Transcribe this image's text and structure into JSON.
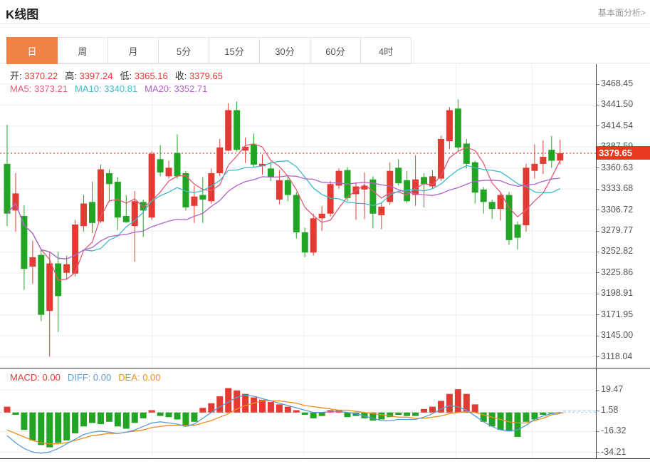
{
  "header": {
    "title": "K线图",
    "link": "基本面分析>"
  },
  "tabs": {
    "items": [
      {
        "label": "日",
        "active": true
      },
      {
        "label": "周",
        "active": false
      },
      {
        "label": "月",
        "active": false
      },
      {
        "label": "5分",
        "active": false
      },
      {
        "label": "15分",
        "active": false
      },
      {
        "label": "30分",
        "active": false
      },
      {
        "label": "60分",
        "active": false
      },
      {
        "label": "4时",
        "active": false
      }
    ]
  },
  "legend": {
    "ohlc": [
      {
        "label": "开:",
        "value": "3370.22"
      },
      {
        "label": "高:",
        "value": "3397.24"
      },
      {
        "label": "低:",
        "value": "3365.16"
      },
      {
        "label": "收:",
        "value": "3379.65"
      }
    ],
    "label_color": "#333333",
    "value_color": "#e23b33",
    "ma": [
      {
        "label": "MA5:",
        "value": "3373.21",
        "color": "#e45b78"
      },
      {
        "label": "MA10:",
        "value": "3340.81",
        "color": "#3fb9c9"
      },
      {
        "label": "MA20:",
        "value": "3352.71",
        "color": "#b163c8"
      }
    ]
  },
  "macd_legend": [
    {
      "label": "MACD:",
      "value": "0.00",
      "color": "#e23b33"
    },
    {
      "label": "DIFF:",
      "value": "0.00",
      "color": "#5b9bd5"
    },
    {
      "label": "DEA:",
      "value": "0.00",
      "color": "#ef8e1a"
    }
  ],
  "price_tag": {
    "value": "3379.65",
    "color": "#e8391f"
  },
  "chart_data": [
    {
      "type": "candlestick",
      "title": "K线图 (日)",
      "y_axis": {
        "labels": [
          "3468.45",
          "3441.50",
          "3414.54",
          "3387.59",
          "3360.63",
          "3333.68",
          "3306.72",
          "3279.77",
          "3252.82",
          "3225.86",
          "3198.91",
          "3171.95",
          "3145.00",
          "3118.04"
        ],
        "values": [
          3468.45,
          3441.5,
          3414.54,
          3387.59,
          3360.63,
          3333.68,
          3306.72,
          3279.77,
          3252.82,
          3225.86,
          3198.91,
          3171.95,
          3145.0,
          3118.04
        ]
      },
      "current_price": 3379.65,
      "current_price_line_color": "#f5564a",
      "up_color": "#e23b33",
      "down_color": "#22a424",
      "grid": true,
      "ohlc_display": {
        "open": 3370.22,
        "high": 3397.24,
        "low": 3365.16,
        "close": 3379.65
      },
      "ma_lines": [
        {
          "name": "MA5",
          "period": 5,
          "color": "#e45b78",
          "current": 3373.21
        },
        {
          "name": "MA10",
          "period": 10,
          "color": "#3fb9c9",
          "current": 3340.81
        },
        {
          "name": "MA20",
          "period": 20,
          "color": "#b163c8",
          "current": 3352.71
        }
      ],
      "candles": [
        [
          3366,
          3416,
          3286,
          3302
        ],
        [
          3306,
          3354,
          3279,
          3328
        ],
        [
          3299,
          3313,
          3204,
          3231
        ],
        [
          3234,
          3267,
          3212,
          3246
        ],
        [
          3249,
          3256,
          3164,
          3172
        ],
        [
          3177,
          3253,
          3118,
          3238
        ],
        [
          3238,
          3253,
          3150,
          3196
        ],
        [
          3226,
          3248,
          3217,
          3237
        ],
        [
          3225,
          3294,
          3221,
          3288
        ],
        [
          3286,
          3326,
          3279,
          3315
        ],
        [
          3317,
          3343,
          3277,
          3290
        ],
        [
          3292,
          3365,
          3290,
          3359
        ],
        [
          3354,
          3359,
          3317,
          3340
        ],
        [
          3343,
          3349,
          3281,
          3297
        ],
        [
          3299,
          3326,
          3290,
          3291
        ],
        [
          3286,
          3331,
          3240,
          3318
        ],
        [
          3317,
          3320,
          3272,
          3306
        ],
        [
          3297,
          3382,
          3294,
          3379
        ],
        [
          3372,
          3390,
          3350,
          3355
        ],
        [
          3350,
          3370,
          3347,
          3361
        ],
        [
          3380,
          3404,
          3347,
          3350
        ],
        [
          3354,
          3357,
          3306,
          3310
        ],
        [
          3312,
          3338,
          3290,
          3324
        ],
        [
          3326,
          3349,
          3290,
          3320
        ],
        [
          3318,
          3360,
          3315,
          3354
        ],
        [
          3354,
          3398,
          3350,
          3387
        ],
        [
          3383,
          3444,
          3382,
          3435
        ],
        [
          3435,
          3446,
          3382,
          3384
        ],
        [
          3383,
          3400,
          3367,
          3388
        ],
        [
          3391,
          3405,
          3362,
          3365
        ],
        [
          3363,
          3378,
          3352,
          3366
        ],
        [
          3360,
          3369,
          3344,
          3349
        ],
        [
          3320,
          3358,
          3314,
          3345
        ],
        [
          3345,
          3350,
          3318,
          3326
        ],
        [
          3326,
          3330,
          3270,
          3278
        ],
        [
          3278,
          3284,
          3246,
          3252
        ],
        [
          3252,
          3302,
          3248,
          3296
        ],
        [
          3296,
          3312,
          3280,
          3302
        ],
        [
          3302,
          3344,
          3298,
          3340
        ],
        [
          3338,
          3360,
          3334,
          3357
        ],
        [
          3358,
          3362,
          3318,
          3322
        ],
        [
          3327,
          3342,
          3294,
          3337
        ],
        [
          3333,
          3355,
          3295,
          3338
        ],
        [
          3346,
          3350,
          3283,
          3302
        ],
        [
          3300,
          3315,
          3282,
          3311
        ],
        [
          3317,
          3368,
          3313,
          3357
        ],
        [
          3361,
          3372,
          3338,
          3341
        ],
        [
          3345,
          3357,
          3316,
          3318
        ],
        [
          3326,
          3377,
          3312,
          3346
        ],
        [
          3349,
          3354,
          3310,
          3340
        ],
        [
          3337,
          3358,
          3334,
          3350
        ],
        [
          3347,
          3402,
          3344,
          3398
        ],
        [
          3395,
          3439,
          3385,
          3435
        ],
        [
          3437,
          3449,
          3382,
          3387
        ],
        [
          3392,
          3398,
          3360,
          3366
        ],
        [
          3368,
          3370,
          3315,
          3329
        ],
        [
          3333,
          3336,
          3302,
          3317
        ],
        [
          3317,
          3320,
          3295,
          3308
        ],
        [
          3308,
          3330,
          3293,
          3326
        ],
        [
          3326,
          3330,
          3262,
          3268
        ],
        [
          3288,
          3292,
          3256,
          3271
        ],
        [
          3287,
          3366,
          3279,
          3361
        ],
        [
          3357,
          3391,
          3347,
          3366
        ],
        [
          3366,
          3396,
          3353,
          3375
        ],
        [
          3384,
          3402,
          3361,
          3370
        ],
        [
          3370.22,
          3397.24,
          3365.16,
          3379.65
        ]
      ]
    },
    {
      "type": "bar",
      "title": "MACD",
      "y_axis": {
        "labels": [
          "19.47",
          "1.58",
          "-16.32",
          "-34.21"
        ],
        "values": [
          19.47,
          1.58,
          -16.32,
          -34.21
        ]
      },
      "macd_value": 0.0,
      "diff_value": 0.0,
      "dea_value": 0.0,
      "pos_color": "#e23b33",
      "neg_color": "#22a424",
      "diff_color": "#5b9bd5",
      "dea_color": "#ef8e1a",
      "hist": [
        5,
        -2,
        -15,
        -24,
        -28,
        -30,
        -26,
        -24,
        -18,
        -12,
        -9,
        -10,
        -8,
        -12,
        -14,
        -9,
        -5,
        2,
        -3,
        -4,
        -6,
        -12,
        -8,
        4,
        8,
        14,
        21,
        19,
        16,
        13,
        11,
        9,
        7,
        5,
        2,
        -2,
        -5,
        -3,
        2,
        2,
        -4,
        -3,
        -5,
        -7,
        -6,
        -4,
        -2,
        -3,
        -3,
        3,
        5,
        10,
        16,
        20,
        16,
        7,
        -8,
        -12,
        -15,
        -16,
        -21,
        -8,
        -6,
        -2,
        -1,
        0
      ],
      "diff": [
        -20,
        -26,
        -31,
        -34,
        -35,
        -34,
        -31,
        -27,
        -23,
        -19,
        -17,
        -16,
        -17,
        -18,
        -17,
        -15,
        -12,
        -9,
        -8,
        -9,
        -10,
        -12,
        -10,
        -5,
        0,
        5,
        9,
        13,
        15,
        14,
        12,
        10,
        8,
        6,
        4,
        2,
        0,
        0,
        1,
        1,
        0,
        -1,
        -3,
        -5,
        -7,
        -7,
        -6,
        -6,
        -6,
        -4,
        -1,
        3,
        6,
        5,
        2,
        -3,
        -8,
        -12,
        -15,
        -16,
        -15,
        -11,
        -6,
        -3,
        -1,
        0
      ],
      "dea": [
        -15,
        -18,
        -21,
        -24,
        -26,
        -27,
        -27,
        -26,
        -24,
        -22,
        -20,
        -19,
        -18,
        -18,
        -17,
        -16,
        -15,
        -13,
        -12,
        -11,
        -11,
        -11,
        -11,
        -9,
        -7,
        -4,
        -1,
        3,
        6,
        8,
        10,
        10,
        10,
        9,
        8,
        6,
        5,
        4,
        3,
        2,
        2,
        1,
        0,
        -1,
        -2,
        -3,
        -4,
        -4,
        -5,
        -5,
        -4,
        -3,
        -1,
        0,
        1,
        0,
        -2,
        -4,
        -6,
        -8,
        -9,
        -9,
        -7,
        -5,
        -2,
        -1
      ]
    }
  ]
}
